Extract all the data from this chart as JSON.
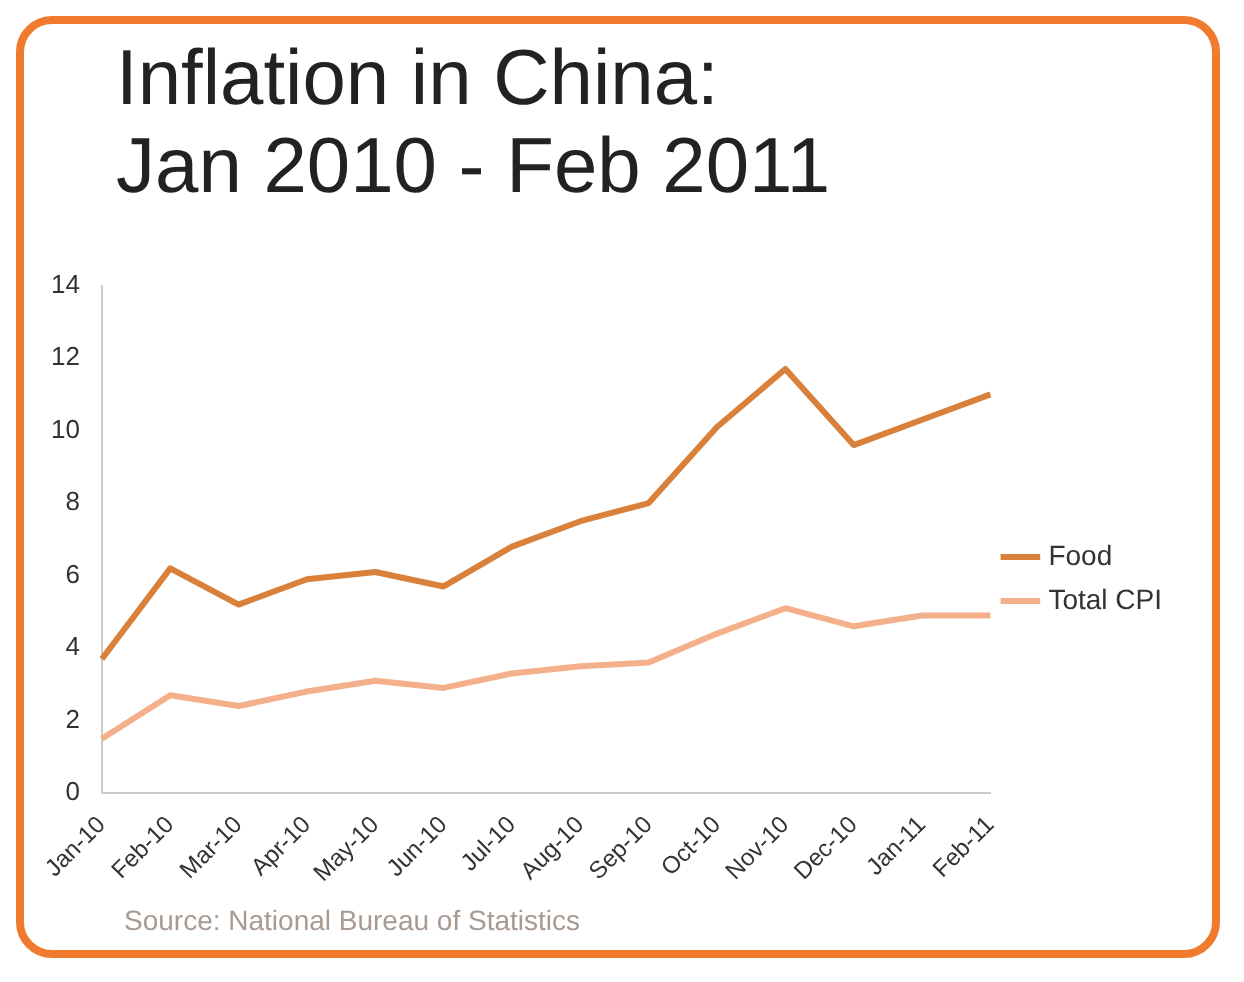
{
  "chart_data": {
    "type": "line",
    "title": "Inflation in China:\nJan 2010 - Feb 2011",
    "categories": [
      "Jan-10",
      "Feb-10",
      "Mar-10",
      "Apr-10",
      "May-10",
      "Jun-10",
      "Jul-10",
      "Aug-10",
      "Sep-10",
      "Oct-10",
      "Nov-10",
      "Dec-10",
      "Jan-11",
      "Feb-11"
    ],
    "series": [
      {
        "name": "Food",
        "color": "#d9803a",
        "values": [
          3.7,
          6.2,
          5.2,
          5.9,
          6.1,
          5.7,
          6.8,
          7.5,
          8.0,
          10.1,
          11.7,
          9.6,
          10.3,
          11.0
        ]
      },
      {
        "name": "Total CPI",
        "color": "#f4b08a",
        "values": [
          1.5,
          2.7,
          2.4,
          2.8,
          3.1,
          2.9,
          3.3,
          3.5,
          3.6,
          4.4,
          5.1,
          4.6,
          4.9,
          4.9
        ]
      }
    ],
    "ylim": [
      0,
      14
    ],
    "yticks": [
      0,
      2,
      4,
      6,
      8,
      10,
      12,
      14
    ],
    "grid": false,
    "legend": "right",
    "marker": "none",
    "line_style": "solid",
    "annotations": [
      "Source: National Bureau of Statistics"
    ]
  }
}
